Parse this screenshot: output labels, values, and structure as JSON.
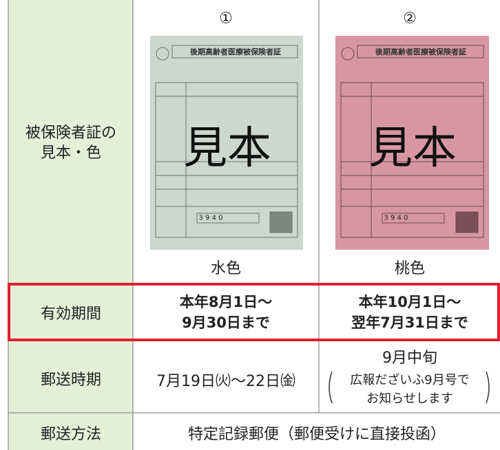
{
  "table": {
    "columns": [
      "①",
      "②"
    ],
    "cards": [
      {
        "title": "後期高齢者医療被保険者証",
        "stamp": "見本",
        "number": "3 9 4 0",
        "color_label": "水色"
      },
      {
        "title": "後期高齢者医療被保険者証",
        "stamp": "見本",
        "number": "3 9 4 0",
        "color_label": "桃色"
      }
    ],
    "rows": [
      {
        "label": [
          "被保険者証の",
          "見本・色"
        ]
      },
      {
        "label": [
          "有効期間"
        ],
        "cells": [
          [
            "本年8月1日～",
            "9月30日まで"
          ],
          [
            "本年10月1日～",
            "翌年7月31日まで"
          ]
        ]
      },
      {
        "label": [
          "郵送時期"
        ],
        "cells": [
          [
            "7月19日㈫～22日㈮"
          ],
          [
            "9月中旬",
            "広報だざいふ9月号で",
            "お知らせします"
          ]
        ]
      },
      {
        "label": [
          "郵送方法"
        ],
        "cells": [
          [
            "特定記録郵便（郵便受けに直接投函）"
          ]
        ]
      }
    ]
  }
}
